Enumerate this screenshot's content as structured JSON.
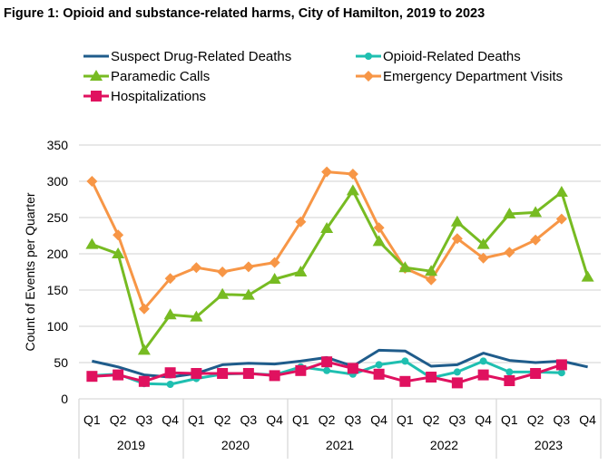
{
  "chart_data": {
    "type": "line",
    "title": "Figure 1: Opioid and substance-related harms, City of Hamilton, 2019 to 2023",
    "ylabel": "Count of Events per Quarter",
    "xlabel": "",
    "ylim": [
      0,
      350
    ],
    "yticks": [
      "0",
      "50",
      "100",
      "150",
      "200",
      "250",
      "300",
      "350"
    ],
    "grid": true,
    "legend_placement": "top",
    "quarters": [
      "Q1",
      "Q2",
      "Q3",
      "Q4"
    ],
    "years": [
      "2019",
      "2020",
      "2021",
      "2022",
      "2023"
    ],
    "series": [
      {
        "name": "Suspect Drug-Related Deaths",
        "color": "#1F5C8B",
        "marker": "none",
        "values": [
          52,
          44,
          33,
          30,
          35,
          47,
          49,
          48,
          52,
          57,
          45,
          67,
          66,
          45,
          47,
          63,
          53,
          50,
          52,
          44
        ]
      },
      {
        "name": "Opioid-Related Deaths",
        "color": "#1FBFB0",
        "marker": "circle",
        "values": [
          32,
          34,
          21,
          20,
          28,
          34,
          35,
          33,
          44,
          39,
          34,
          47,
          52,
          29,
          37,
          52,
          37,
          37,
          36,
          null
        ]
      },
      {
        "name": "Paramedic Calls",
        "color": "#77BB22",
        "marker": "triangle",
        "values": [
          213,
          200,
          67,
          116,
          113,
          144,
          143,
          165,
          175,
          235,
          287,
          217,
          181,
          176,
          244,
          213,
          255,
          257,
          285,
          168
        ]
      },
      {
        "name": "Emergency Department Visits",
        "color": "#F79646",
        "marker": "diamond",
        "values": [
          300,
          226,
          124,
          166,
          181,
          175,
          182,
          188,
          244,
          313,
          310,
          236,
          180,
          164,
          221,
          194,
          202,
          219,
          248,
          null
        ]
      },
      {
        "name": "Hospitalizations",
        "color": "#E0115F",
        "marker": "square",
        "values": [
          31,
          33,
          24,
          36,
          35,
          35,
          35,
          32,
          39,
          51,
          42,
          34,
          24,
          30,
          22,
          33,
          25,
          35,
          47,
          null
        ]
      }
    ]
  }
}
